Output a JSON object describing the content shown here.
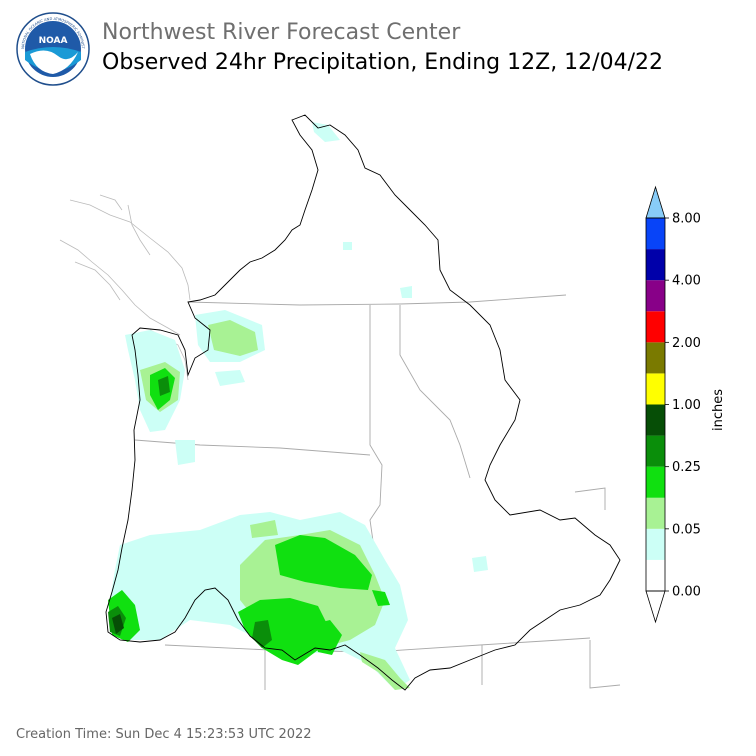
{
  "header": {
    "center_name": "Northwest River Forecast Center",
    "title": "Observed 24hr Precipitation, Ending 12Z, 12/04/22"
  },
  "logo": {
    "text": "NOAA",
    "ring_text": "NATIONAL OCEANIC AND ATMOSPHERIC ADMINISTRATION · U.S. DEPARTMENT OF COMMERCE"
  },
  "legend": {
    "unit_label": "inches",
    "bins": [
      {
        "from": 0.0,
        "color": "#ffffff"
      },
      {
        "from": 0.01,
        "color": "#ccfff6"
      },
      {
        "from": 0.05,
        "color": "#a8f294"
      },
      {
        "from": 0.1,
        "color": "#10e010"
      },
      {
        "from": 0.25,
        "color": "#0a8e0a"
      },
      {
        "from": 0.5,
        "color": "#064e06"
      },
      {
        "from": 1.0,
        "color": "#ffff00"
      },
      {
        "from": 1.5,
        "color": "#7a7a00"
      },
      {
        "from": 2.0,
        "color": "#ff0000"
      },
      {
        "from": 3.0,
        "color": "#880088"
      },
      {
        "from": 4.0,
        "color": "#0000aa"
      },
      {
        "from": 6.0,
        "color": "#0844f8"
      }
    ],
    "over_color": "#88ccf8",
    "under_color": "#ffffff",
    "tick_labels": [
      "0.00",
      "0.05",
      "0.25",
      "1.00",
      "2.00",
      "4.00",
      "8.00"
    ]
  },
  "colors": {
    "basin_outline": "#000000",
    "state_borders": "#aaaaaa"
  },
  "footer": {
    "creation_time": "Creation Time: Sun Dec 4 15:23:53 UTC 2022"
  }
}
